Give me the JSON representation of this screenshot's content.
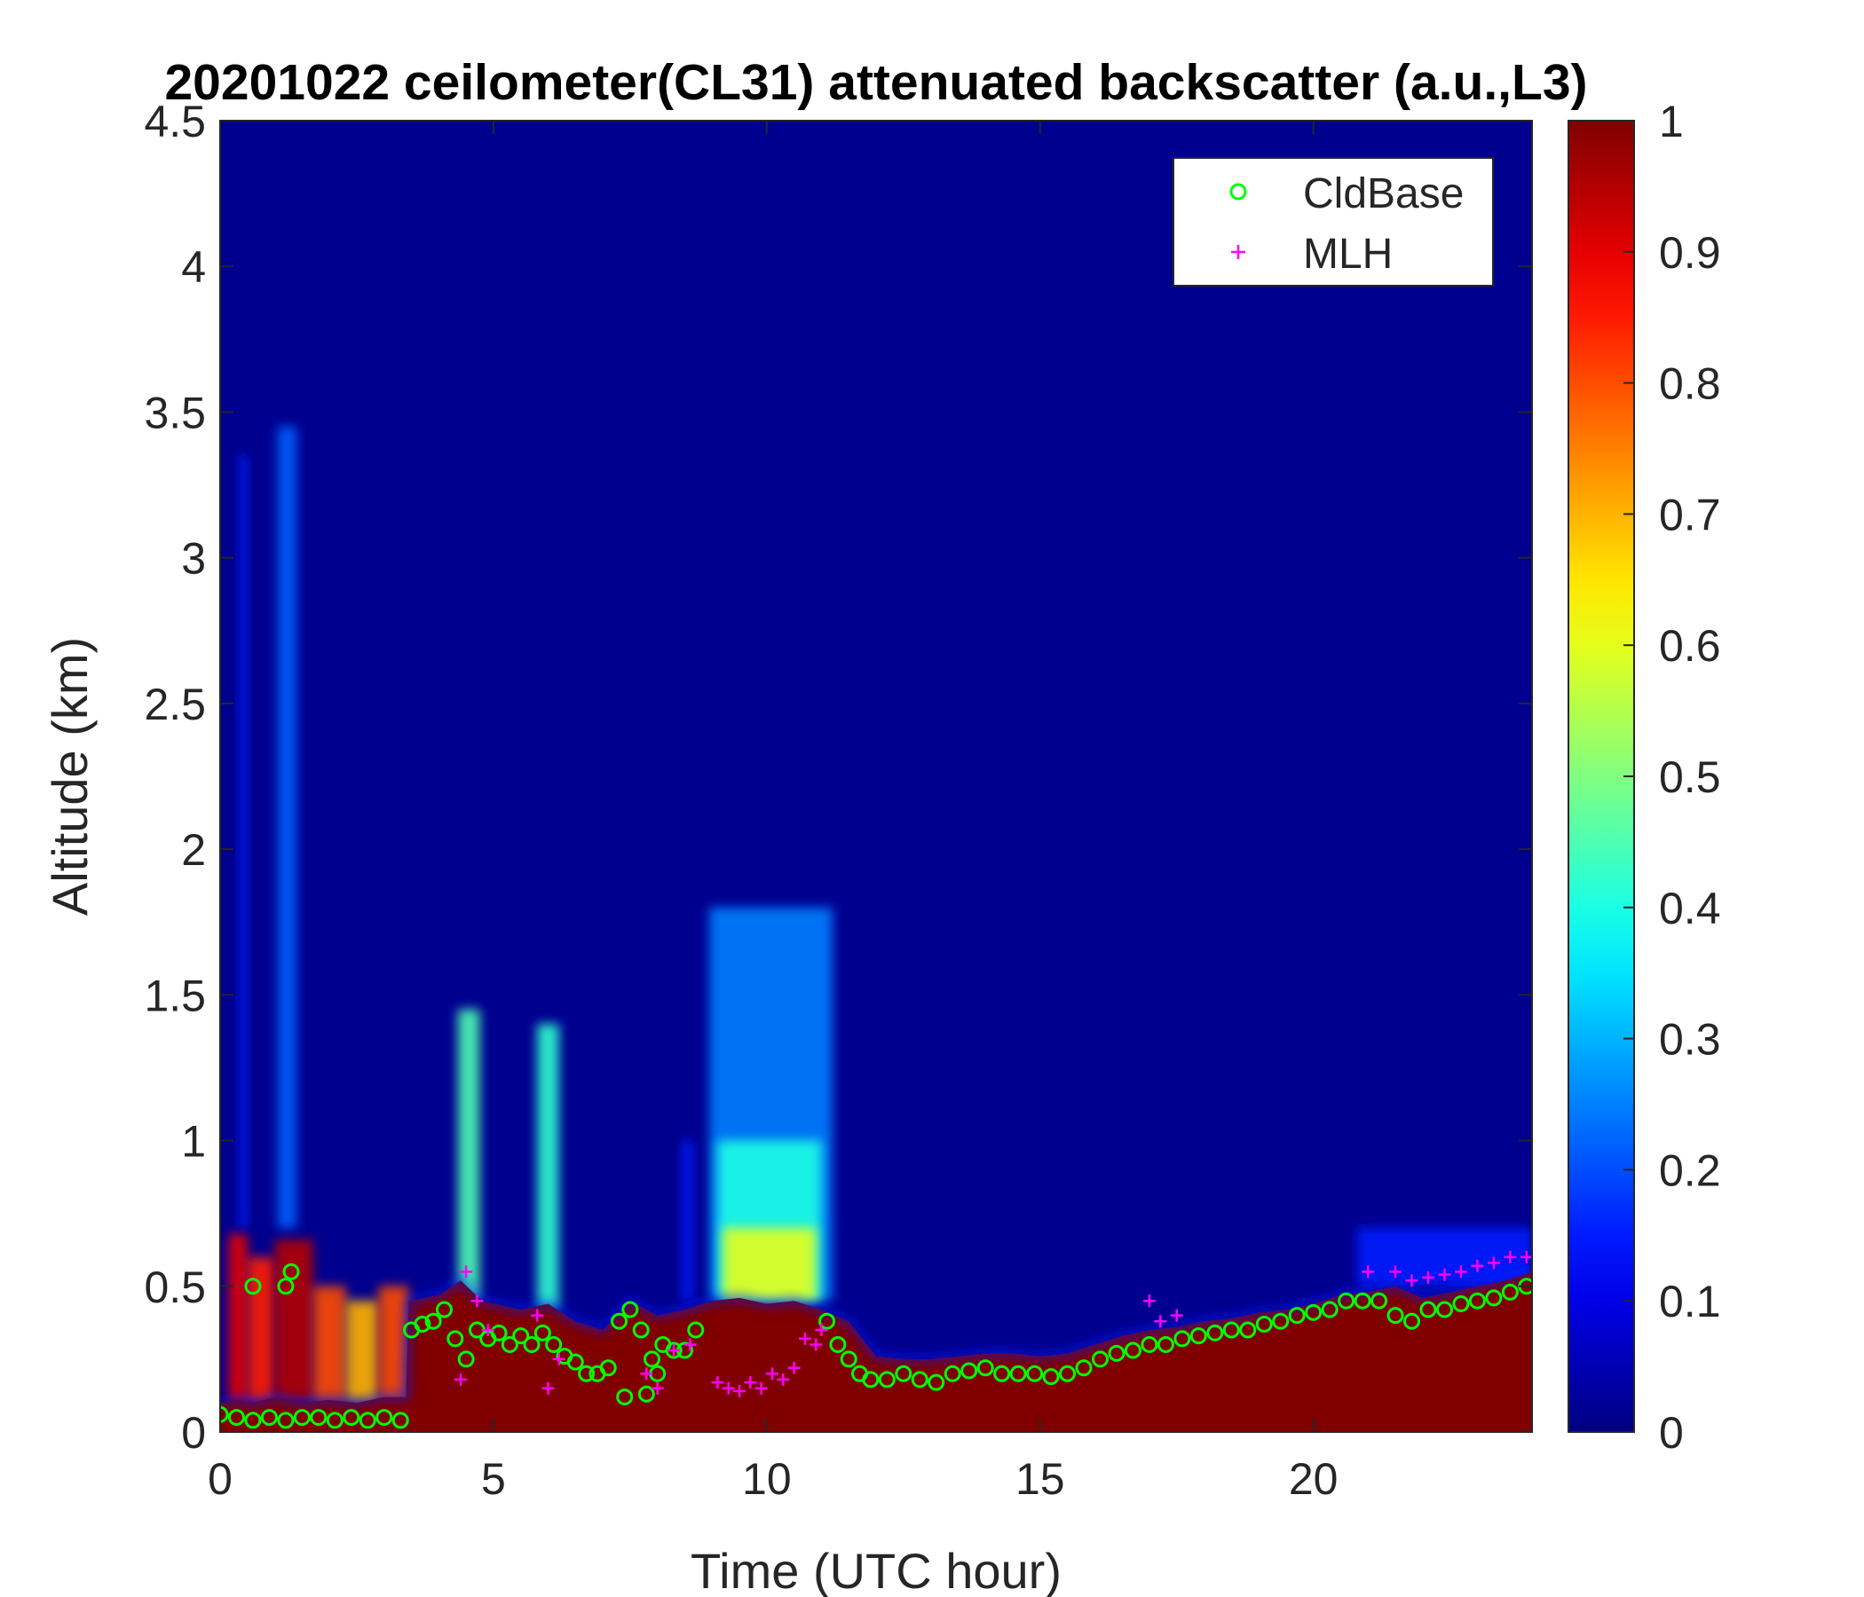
{
  "chart_data": {
    "type": "heatmap",
    "title": "20201022 ceilometer(CL31) attenuated backscatter (a.u.,L3)",
    "xlabel": "Time (UTC hour)",
    "ylabel": "Altitude (km)",
    "xlim": [
      0,
      24
    ],
    "ylim": [
      0,
      4.5
    ],
    "xticks": [
      0,
      5,
      10,
      15,
      20
    ],
    "yticks": [
      0,
      0.5,
      1,
      1.5,
      2,
      2.5,
      3,
      3.5,
      4,
      4.5
    ],
    "xtick_labels": [
      "0",
      "5",
      "10",
      "15",
      "20"
    ],
    "ytick_labels": [
      "0",
      "0.5",
      "1",
      "1.5",
      "2",
      "2.5",
      "3",
      "3.5",
      "4",
      "4.5"
    ],
    "colorbar": {
      "colormap": "jet",
      "range": [
        0,
        1
      ],
      "ticks": [
        0,
        0.1,
        0.2,
        0.3,
        0.4,
        0.5,
        0.6,
        0.7,
        0.8,
        0.9,
        1
      ],
      "tick_labels": [
        "0",
        "0.1",
        "0.2",
        "0.3",
        "0.4",
        "0.5",
        "0.6",
        "0.7",
        "0.8",
        "0.9",
        "1"
      ]
    },
    "background_value": 0.0,
    "surface_layer_value": 1.0,
    "surface_layer_top_km": [
      [
        0,
        0.1
      ],
      [
        0.3,
        0.11
      ],
      [
        0.6,
        0.1
      ],
      [
        1.0,
        0.12
      ],
      [
        1.5,
        0.1
      ],
      [
        2.0,
        0.11
      ],
      [
        2.5,
        0.1
      ],
      [
        3.0,
        0.12
      ],
      [
        3.4,
        0.12
      ],
      [
        3.45,
        0.45
      ],
      [
        4.0,
        0.47
      ],
      [
        4.4,
        0.52
      ],
      [
        4.8,
        0.45
      ],
      [
        5.5,
        0.42
      ],
      [
        6.0,
        0.44
      ],
      [
        6.5,
        0.38
      ],
      [
        7.0,
        0.35
      ],
      [
        7.5,
        0.45
      ],
      [
        8.0,
        0.4
      ],
      [
        8.5,
        0.42
      ],
      [
        9.0,
        0.45
      ],
      [
        9.5,
        0.46
      ],
      [
        10.0,
        0.44
      ],
      [
        10.5,
        0.45
      ],
      [
        11.0,
        0.42
      ],
      [
        11.5,
        0.38
      ],
      [
        12.0,
        0.26
      ],
      [
        12.5,
        0.25
      ],
      [
        13.0,
        0.25
      ],
      [
        13.5,
        0.26
      ],
      [
        14.0,
        0.27
      ],
      [
        14.5,
        0.27
      ],
      [
        15.0,
        0.26
      ],
      [
        15.5,
        0.27
      ],
      [
        16.0,
        0.3
      ],
      [
        16.5,
        0.33
      ],
      [
        17.0,
        0.35
      ],
      [
        17.5,
        0.36
      ],
      [
        18.0,
        0.38
      ],
      [
        18.5,
        0.39
      ],
      [
        19.0,
        0.41
      ],
      [
        19.5,
        0.42
      ],
      [
        20.0,
        0.44
      ],
      [
        20.5,
        0.47
      ],
      [
        21.0,
        0.48
      ],
      [
        21.5,
        0.5
      ],
      [
        22.0,
        0.46
      ],
      [
        22.5,
        0.48
      ],
      [
        23.0,
        0.5
      ],
      [
        23.5,
        0.52
      ],
      [
        24.0,
        0.55
      ]
    ],
    "aerosol_features": [
      {
        "t0": 0.15,
        "t1": 0.5,
        "z0": 0.1,
        "z1": 0.68,
        "value": 0.9
      },
      {
        "t0": 0.5,
        "t1": 1.0,
        "z0": 0.1,
        "z1": 0.6,
        "value": 0.85
      },
      {
        "t0": 1.0,
        "t1": 1.7,
        "z0": 0.1,
        "z1": 0.66,
        "value": 0.95
      },
      {
        "t0": 1.7,
        "t1": 2.3,
        "z0": 0.1,
        "z1": 0.5,
        "value": 0.8
      },
      {
        "t0": 2.3,
        "t1": 2.9,
        "z0": 0.1,
        "z1": 0.45,
        "value": 0.7
      },
      {
        "t0": 2.9,
        "t1": 3.45,
        "z0": 0.1,
        "z1": 0.5,
        "value": 0.8
      },
      {
        "t0": 0.35,
        "t1": 0.5,
        "z0": 0.7,
        "z1": 3.35,
        "value": 0.15
      },
      {
        "t0": 1.05,
        "t1": 1.4,
        "z0": 0.7,
        "z1": 3.45,
        "value": 0.22
      },
      {
        "t0": 4.35,
        "t1": 4.75,
        "z0": 0.45,
        "z1": 1.45,
        "value": 0.45
      },
      {
        "t0": 5.8,
        "t1": 6.2,
        "z0": 0.42,
        "z1": 1.4,
        "value": 0.42
      },
      {
        "t0": 8.45,
        "t1": 8.65,
        "z0": 0.45,
        "z1": 1.0,
        "value": 0.15
      },
      {
        "t0": 8.95,
        "t1": 11.2,
        "z0": 0.45,
        "z1": 1.8,
        "value": 0.25
      },
      {
        "t0": 9.1,
        "t1": 11.0,
        "z0": 0.45,
        "z1": 1.0,
        "value": 0.4
      },
      {
        "t0": 9.2,
        "t1": 10.9,
        "z0": 0.45,
        "z1": 0.7,
        "value": 0.6
      },
      {
        "t0": 20.8,
        "t1": 24.0,
        "z0": 0.5,
        "z1": 0.7,
        "value": 0.15
      }
    ],
    "series": [
      {
        "name": "CldBase",
        "marker": "circle",
        "color": "#00ff00",
        "x": [
          0,
          0.3,
          0.6,
          0.9,
          1.2,
          1.5,
          1.8,
          2.1,
          2.4,
          2.7,
          3.0,
          3.3,
          0.6,
          1.2,
          1.3,
          3.5,
          3.7,
          3.9,
          4.1,
          4.3,
          4.5,
          4.7,
          4.9,
          5.1,
          5.3,
          5.5,
          5.7,
          5.9,
          6.1,
          6.3,
          6.5,
          6.7,
          6.9,
          7.1,
          7.3,
          7.5,
          7.7,
          7.9,
          8.1,
          8.3,
          8.5,
          8.7,
          7.4,
          7.8,
          8.0,
          11.1,
          11.3,
          11.5,
          11.7,
          11.9,
          12.2,
          12.5,
          12.8,
          13.1,
          13.4,
          13.7,
          14.0,
          14.3,
          14.6,
          14.9,
          15.2,
          15.5,
          15.8,
          16.1,
          16.4,
          16.7,
          17.0,
          17.3,
          17.6,
          17.9,
          18.2,
          18.5,
          18.8,
          19.1,
          19.4,
          19.7,
          20.0,
          20.3,
          20.6,
          20.9,
          21.2,
          21.5,
          21.8,
          22.1,
          22.4,
          22.7,
          23.0,
          23.3,
          23.6,
          23.9
        ],
        "y": [
          0.06,
          0.05,
          0.04,
          0.05,
          0.04,
          0.05,
          0.05,
          0.04,
          0.05,
          0.04,
          0.05,
          0.04,
          0.5,
          0.5,
          0.55,
          0.35,
          0.37,
          0.38,
          0.42,
          0.32,
          0.25,
          0.35,
          0.32,
          0.34,
          0.3,
          0.33,
          0.3,
          0.34,
          0.3,
          0.26,
          0.24,
          0.2,
          0.2,
          0.22,
          0.38,
          0.42,
          0.35,
          0.25,
          0.3,
          0.28,
          0.28,
          0.35,
          0.12,
          0.13,
          0.2,
          0.38,
          0.3,
          0.25,
          0.2,
          0.18,
          0.18,
          0.2,
          0.18,
          0.17,
          0.2,
          0.21,
          0.22,
          0.2,
          0.2,
          0.2,
          0.19,
          0.2,
          0.22,
          0.25,
          0.27,
          0.28,
          0.3,
          0.3,
          0.32,
          0.33,
          0.34,
          0.35,
          0.35,
          0.37,
          0.38,
          0.4,
          0.41,
          0.42,
          0.45,
          0.45,
          0.45,
          0.4,
          0.38,
          0.42,
          0.42,
          0.44,
          0.45,
          0.46,
          0.48,
          0.5
        ]
      },
      {
        "name": "MLH",
        "marker": "plus",
        "color": "#ff00ff",
        "x": [
          4.4,
          4.5,
          4.7,
          4.9,
          5.8,
          6.0,
          6.2,
          7.8,
          8.0,
          8.3,
          8.6,
          9.1,
          9.3,
          9.5,
          9.7,
          9.9,
          10.1,
          10.3,
          10.5,
          10.7,
          10.9,
          11.0,
          17.0,
          17.2,
          17.5,
          21.0,
          21.5,
          21.8,
          22.1,
          22.4,
          22.7,
          23.0,
          23.3,
          23.6,
          23.9
        ],
        "y": [
          0.18,
          0.55,
          0.45,
          0.35,
          0.4,
          0.15,
          0.25,
          0.2,
          0.15,
          0.28,
          0.3,
          0.17,
          0.15,
          0.14,
          0.17,
          0.15,
          0.2,
          0.18,
          0.22,
          0.32,
          0.3,
          0.35,
          0.45,
          0.38,
          0.4,
          0.55,
          0.55,
          0.52,
          0.53,
          0.54,
          0.55,
          0.57,
          0.58,
          0.6,
          0.6
        ]
      }
    ],
    "legend": {
      "location": "top-right",
      "entries": [
        "CldBase",
        "MLH"
      ]
    },
    "grid": false
  }
}
